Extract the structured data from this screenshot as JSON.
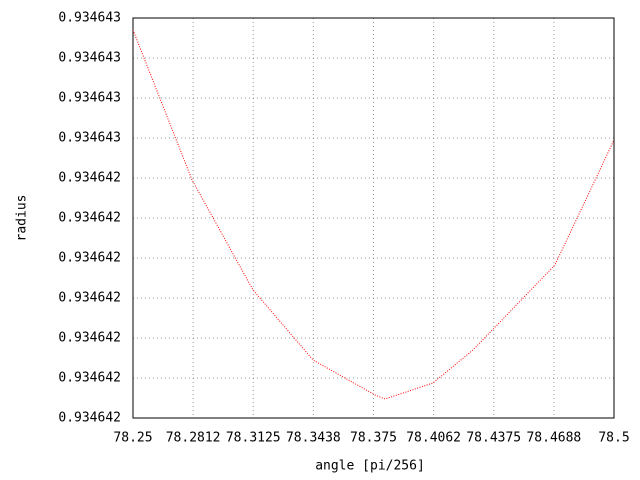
{
  "chart_data": {
    "type": "line",
    "xlabel": "angle [pi/256]",
    "ylabel": "radius",
    "x": [
      78.25,
      78.2807,
      78.3124,
      78.3436,
      78.3758,
      78.381,
      78.4059,
      78.4267,
      78.4693,
      78.5
    ],
    "series": [
      {
        "color": "#ff0000",
        "values": [
          0.934642564,
          0.934642489,
          0.934642434,
          0.934642399,
          0.9346423815,
          0.9346423795,
          0.9346423875,
          0.934642404,
          0.9346424465,
          0.934642509
        ]
      }
    ],
    "xlim": [
      78.25,
      78.5
    ],
    "xticks": [
      78.25,
      {
        "value": 78.28125,
        "label": "78.2812"
      },
      78.3125,
      {
        "value": 78.34375,
        "label": "78.3438"
      },
      78.375,
      {
        "value": 78.40625,
        "label": "78.4062"
      },
      78.4375,
      {
        "value": 78.46875,
        "label": "78.4688"
      },
      78.5
    ],
    "ylim": [
      0.93464237,
      0.93464257
    ],
    "yticks": [
      {
        "value": 0.93464237,
        "label": "0.934642"
      },
      {
        "value": 0.93464239,
        "label": "0.934642"
      },
      {
        "value": 0.93464241,
        "label": "0.934642"
      },
      {
        "value": 0.93464243,
        "label": "0.934642"
      },
      {
        "value": 0.93464245,
        "label": "0.934642"
      },
      {
        "value": 0.93464247,
        "label": "0.934642"
      },
      {
        "value": 0.93464249,
        "label": "0.934642"
      },
      {
        "value": 0.93464251,
        "label": "0.934643"
      },
      {
        "value": 0.93464253,
        "label": "0.934643"
      },
      {
        "value": 0.93464255,
        "label": "0.934643"
      },
      {
        "value": 0.93464257,
        "label": "0.934643"
      }
    ],
    "grid": true
  }
}
